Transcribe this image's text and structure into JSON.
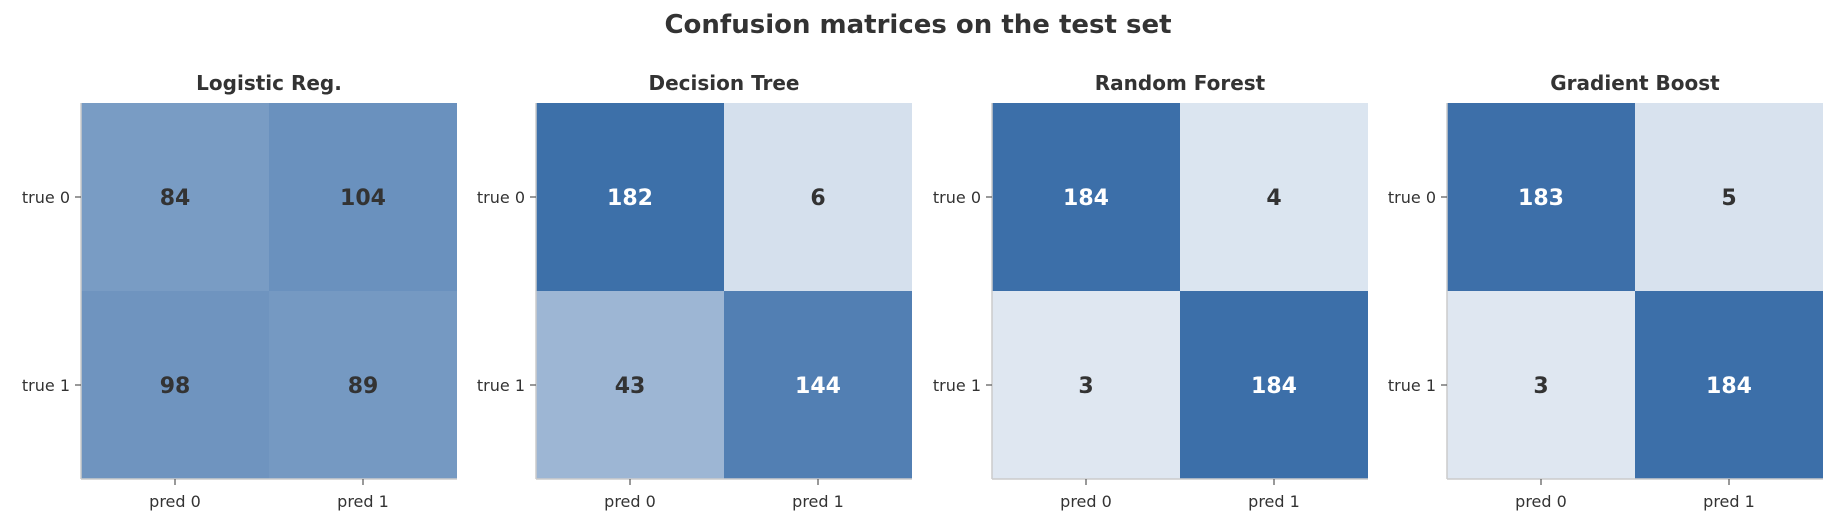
{
  "title": "Confusion matrices on the test set",
  "colors": {
    "low": "#f7f9fc",
    "high": "#3c6fa9",
    "text_dark": "#333333",
    "text_light": "#ffffff"
  },
  "chart_data": [
    {
      "type": "heatmap",
      "title": "Logistic Reg.",
      "row_labels": [
        "true 0",
        "true 1"
      ],
      "col_labels": [
        "pred 0",
        "pred 1"
      ],
      "values": [
        [
          84,
          104
        ],
        [
          98,
          89
        ]
      ],
      "color_range": [
        0,
        184
      ],
      "grid": false
    },
    {
      "type": "heatmap",
      "title": "Decision Tree",
      "row_labels": [
        "true 0",
        "true 1"
      ],
      "col_labels": [
        "pred 0",
        "pred 1"
      ],
      "values": [
        [
          182,
          6
        ],
        [
          43,
          144
        ]
      ],
      "color_range": [
        0,
        184
      ],
      "grid": false
    },
    {
      "type": "heatmap",
      "title": "Random Forest",
      "row_labels": [
        "true 0",
        "true 1"
      ],
      "col_labels": [
        "pred 0",
        "pred 1"
      ],
      "values": [
        [
          184,
          4
        ],
        [
          3,
          184
        ]
      ],
      "color_range": [
        0,
        184
      ],
      "grid": false
    },
    {
      "type": "heatmap",
      "title": "Gradient Boost",
      "row_labels": [
        "true 0",
        "true 1"
      ],
      "col_labels": [
        "pred 0",
        "pred 1"
      ],
      "values": [
        [
          183,
          5
        ],
        [
          3,
          184
        ]
      ],
      "color_range": [
        0,
        184
      ],
      "grid": false
    }
  ]
}
